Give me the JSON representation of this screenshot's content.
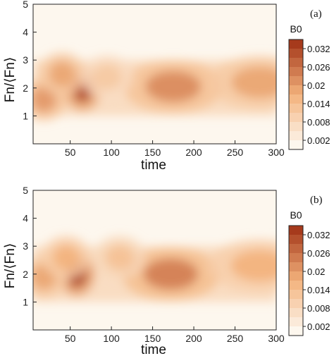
{
  "chart_data": [
    {
      "type": "heatmap",
      "panel_label": "(a)",
      "xlabel": "time",
      "ylabel": "Fn/⟨Fn⟩",
      "xlim": [
        5,
        300
      ],
      "ylim": [
        0,
        5
      ],
      "xticks": [
        50,
        100,
        150,
        200,
        250,
        300
      ],
      "yticks": [
        1,
        2,
        3,
        4,
        5
      ],
      "colorbar": {
        "title": "B0",
        "ticks": [
          "0.032",
          "0.026",
          "0.02",
          "0.014",
          "0.008",
          "0.002"
        ],
        "range": [
          0,
          0.036
        ]
      },
      "features": [
        {
          "time": 65,
          "freq": 1.95,
          "value": 0.034
        },
        {
          "time": 18,
          "freq": 1.6,
          "value": 0.022
        },
        {
          "time": 40,
          "freq": 2.5,
          "value": 0.02
        },
        {
          "time": 175,
          "freq": 2.05,
          "value": 0.024
        },
        {
          "time": 280,
          "freq": 2.2,
          "value": 0.02
        },
        {
          "time": 95,
          "freq": 2.4,
          "value": 0.012
        }
      ]
    },
    {
      "type": "heatmap",
      "panel_label": "(b)",
      "xlabel": "time",
      "ylabel": "Fn/⟨Fn⟩",
      "xlim": [
        5,
        300
      ],
      "ylim": [
        0,
        5
      ],
      "xticks": [
        50,
        100,
        150,
        200,
        250,
        300
      ],
      "yticks": [
        1,
        2,
        3,
        4,
        5
      ],
      "colorbar": {
        "title": "B0",
        "ticks": [
          "0.032",
          "0.026",
          "0.02",
          "0.014",
          "0.008",
          "0.002"
        ],
        "range": [
          0,
          0.036
        ]
      },
      "features": [
        {
          "time": 58,
          "freq": 2.0,
          "value": 0.036
        },
        {
          "time": 18,
          "freq": 1.9,
          "value": 0.02
        },
        {
          "time": 45,
          "freq": 2.6,
          "value": 0.018
        },
        {
          "time": 172,
          "freq": 2.0,
          "value": 0.026
        },
        {
          "time": 280,
          "freq": 2.3,
          "value": 0.018
        },
        {
          "time": 110,
          "freq": 2.6,
          "value": 0.014
        }
      ]
    }
  ],
  "colors": {
    "low": "#fdf7ee",
    "mid": "#f3b27c",
    "high": "#a63a1c"
  }
}
